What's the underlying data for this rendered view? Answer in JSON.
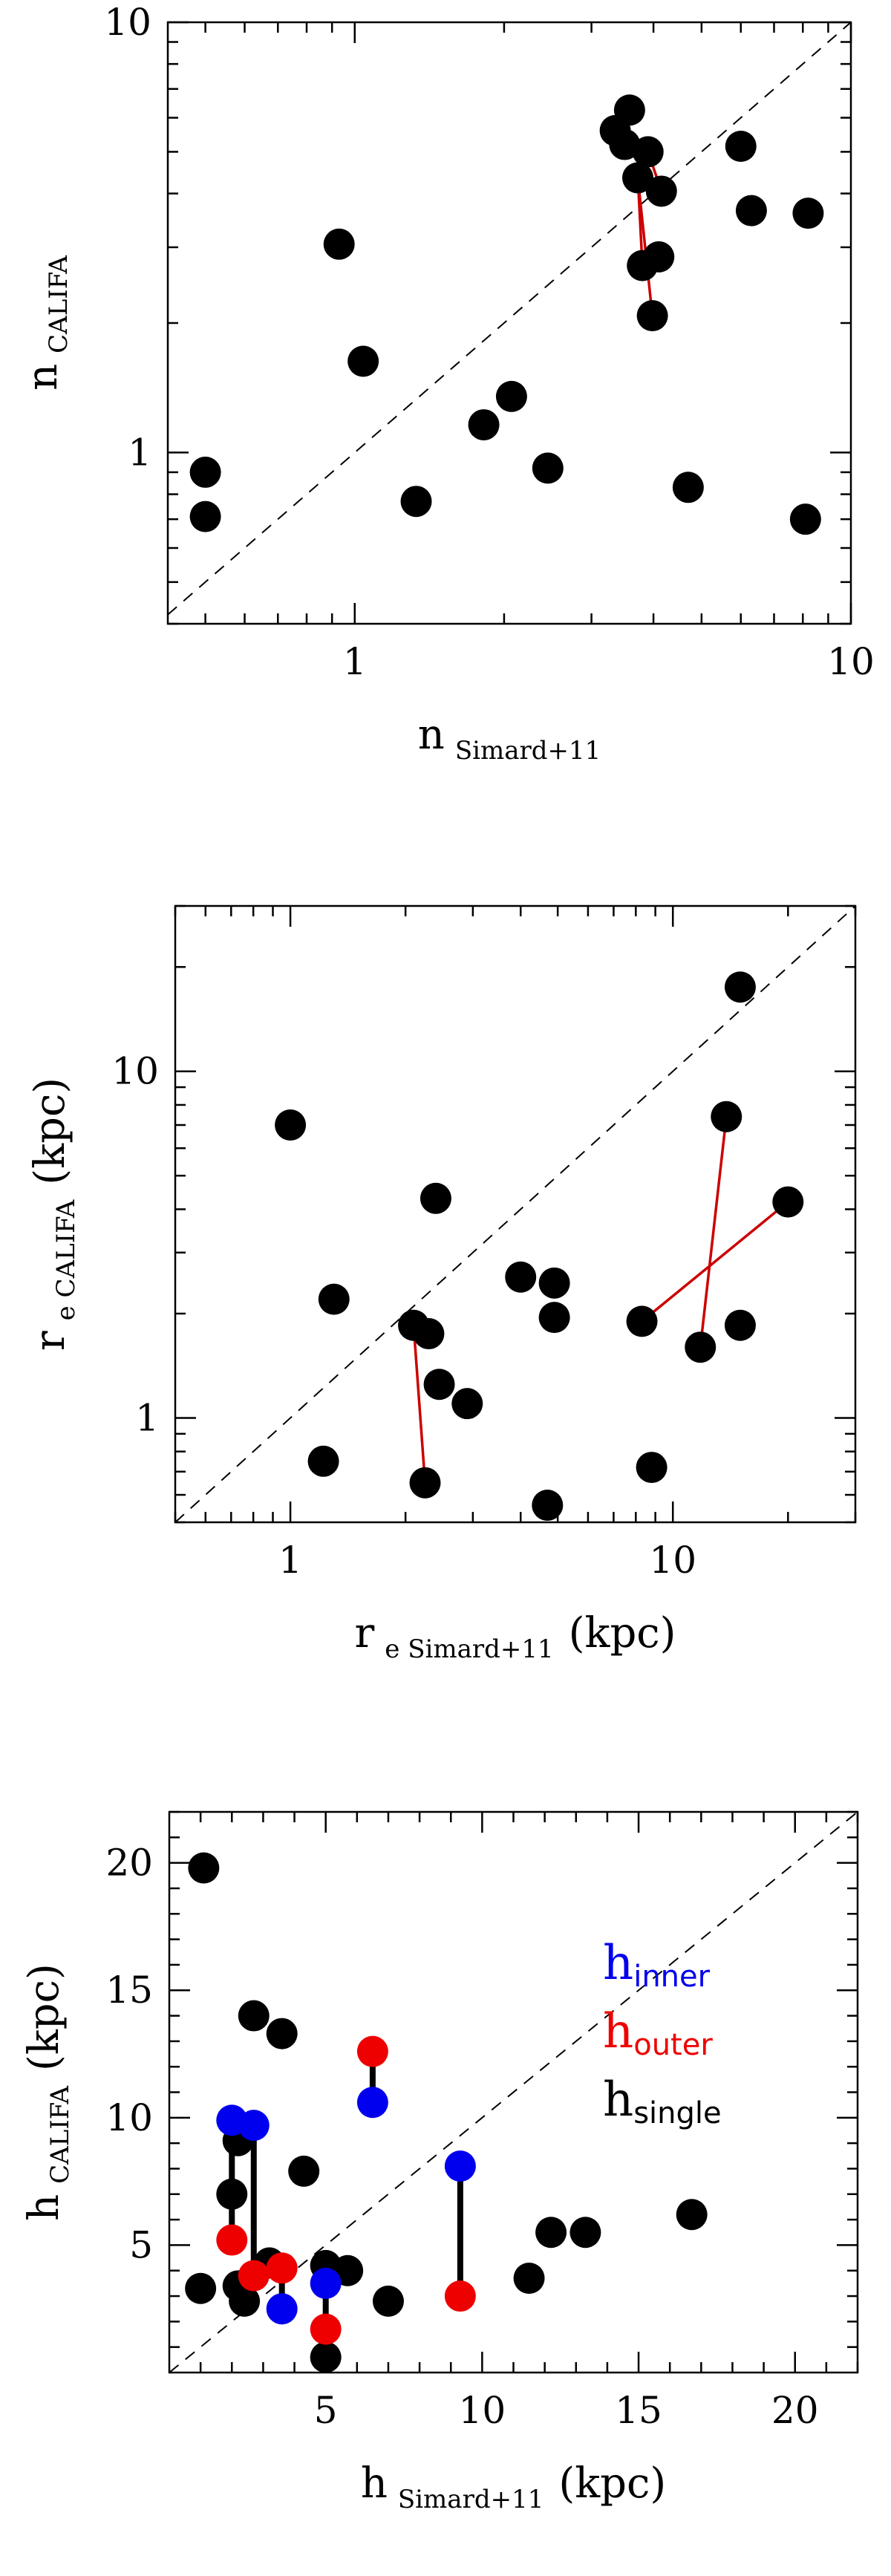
{
  "chart_data": [
    {
      "type": "scatter",
      "scale": "log",
      "xlabel": {
        "main": "n",
        "sub": "Simard+11"
      },
      "ylabel": {
        "main": "n",
        "sub": "CALIFA"
      },
      "xlim": [
        0.42,
        10
      ],
      "ylim": [
        0.4,
        10
      ],
      "xticks": [
        {
          "v": 1,
          "label": "1"
        },
        {
          "v": 10,
          "label": "10"
        }
      ],
      "yticks": [
        {
          "v": 1,
          "label": "1"
        },
        {
          "v": 10,
          "label": "10"
        }
      ],
      "reference_line": "1:1 dashed",
      "colors": {
        "point": "#000000",
        "connector": "#cc0000"
      },
      "points": [
        [
          0.5,
          0.9
        ],
        [
          0.5,
          0.71
        ],
        [
          0.93,
          3.05
        ],
        [
          1.04,
          1.63
        ],
        [
          1.33,
          0.77
        ],
        [
          1.82,
          1.16
        ],
        [
          2.07,
          1.35
        ],
        [
          2.45,
          0.92
        ],
        [
          3.35,
          5.6
        ],
        [
          3.5,
          5.2
        ],
        [
          3.58,
          6.25
        ],
        [
          3.72,
          4.35
        ],
        [
          3.9,
          5.0
        ],
        [
          3.8,
          2.72
        ],
        [
          3.98,
          2.08
        ],
        [
          4.1,
          2.85
        ],
        [
          4.15,
          4.05
        ],
        [
          4.7,
          0.83
        ],
        [
          6.0,
          5.15
        ],
        [
          6.3,
          3.65
        ],
        [
          8.2,
          3.6
        ],
        [
          8.1,
          0.7
        ]
      ],
      "connectors": [
        [
          [
            3.72,
            4.35
          ],
          [
            3.8,
            2.72
          ]
        ],
        [
          [
            3.72,
            4.35
          ],
          [
            3.98,
            2.08
          ]
        ],
        [
          [
            4.15,
            4.05
          ],
          [
            3.9,
            5.0
          ]
        ]
      ]
    },
    {
      "type": "scatter",
      "scale": "log",
      "xlabel": {
        "main": "r",
        "sub": "e Simard+11",
        "unit": "(kpc)"
      },
      "ylabel": {
        "main": "r",
        "sub": "e CALIFA",
        "unit": "(kpc)"
      },
      "xlim": [
        0.5,
        30
      ],
      "ylim": [
        0.5,
        30
      ],
      "xticks": [
        {
          "v": 1,
          "label": "1"
        },
        {
          "v": 10,
          "label": "10"
        }
      ],
      "yticks": [
        {
          "v": 1,
          "label": "1"
        },
        {
          "v": 10,
          "label": "10"
        }
      ],
      "reference_line": "1:1 dashed",
      "colors": {
        "point": "#000000",
        "connector": "#cc0000"
      },
      "points": [
        [
          1.0,
          7.0
        ],
        [
          1.22,
          0.75
        ],
        [
          1.3,
          2.2
        ],
        [
          2.1,
          1.85
        ],
        [
          2.25,
          0.65
        ],
        [
          2.3,
          1.75
        ],
        [
          2.4,
          4.3
        ],
        [
          2.45,
          1.25
        ],
        [
          2.9,
          1.1
        ],
        [
          4.0,
          2.55
        ],
        [
          4.7,
          0.56
        ],
        [
          4.9,
          2.45
        ],
        [
          4.9,
          1.95
        ],
        [
          8.3,
          1.9
        ],
        [
          8.8,
          0.72
        ],
        [
          11.8,
          1.6
        ],
        [
          13.8,
          7.4
        ],
        [
          15.0,
          1.85
        ],
        [
          15.0,
          17.5
        ],
        [
          20.0,
          4.2
        ]
      ],
      "connectors": [
        [
          [
            2.1,
            1.85
          ],
          [
            2.25,
            0.65
          ]
        ],
        [
          [
            11.8,
            1.6
          ],
          [
            13.8,
            7.4
          ]
        ],
        [
          [
            8.3,
            1.9
          ],
          [
            20.0,
            4.2
          ]
        ]
      ]
    },
    {
      "type": "scatter",
      "scale": "linear",
      "xlabel": {
        "main": "h",
        "sub": "Simard+11",
        "unit": "(kpc)"
      },
      "ylabel": {
        "main": "h",
        "sub": "CALIFA",
        "unit": "(kpc)"
      },
      "xlim": [
        0,
        22
      ],
      "ylim": [
        0,
        22
      ],
      "xticks": [
        {
          "v": 5,
          "label": "5"
        },
        {
          "v": 10,
          "label": "10"
        },
        {
          "v": 15,
          "label": "15"
        },
        {
          "v": 20,
          "label": "20"
        }
      ],
      "yticks": [
        {
          "v": 5,
          "label": "5"
        },
        {
          "v": 10,
          "label": "10"
        },
        {
          "v": 15,
          "label": "15"
        },
        {
          "v": 20,
          "label": "20"
        }
      ],
      "reference_line": "1:1 dashed",
      "legend": {
        "placement": "top-right",
        "entries": [
          {
            "main": "h",
            "sub": "inner",
            "color": "#0000ee"
          },
          {
            "main": "h",
            "sub": "outer",
            "color": "#ee0000"
          },
          {
            "main": "h",
            "sub": "single",
            "color": "#000000"
          }
        ]
      },
      "single": [
        [
          1.1,
          19.8
        ],
        [
          1.0,
          3.3
        ],
        [
          2.0,
          7.0
        ],
        [
          2.2,
          9.1
        ],
        [
          2.2,
          3.4
        ],
        [
          2.4,
          2.8
        ],
        [
          2.7,
          14.0
        ],
        [
          3.2,
          4.3
        ],
        [
          3.6,
          13.3
        ],
        [
          4.3,
          7.9
        ],
        [
          5.0,
          4.2
        ],
        [
          5.0,
          0.6
        ],
        [
          5.7,
          4.0
        ],
        [
          7.0,
          2.8
        ],
        [
          11.5,
          3.7
        ],
        [
          12.2,
          5.5
        ],
        [
          13.3,
          5.5
        ],
        [
          16.7,
          6.2
        ]
      ],
      "inner": [
        [
          2.0,
          9.9
        ],
        [
          2.7,
          9.7
        ],
        [
          3.6,
          2.5
        ],
        [
          5.0,
          3.5
        ],
        [
          6.5,
          10.6
        ],
        [
          9.3,
          8.1
        ]
      ],
      "outer": [
        [
          2.0,
          5.2
        ],
        [
          2.7,
          3.8
        ],
        [
          3.6,
          4.1
        ],
        [
          5.0,
          1.7
        ],
        [
          6.5,
          12.6
        ],
        [
          9.3,
          3.0
        ]
      ],
      "connectors": [
        [
          [
            2.0,
            9.9
          ],
          [
            2.0,
            5.2
          ]
        ],
        [
          [
            2.7,
            9.7
          ],
          [
            2.7,
            3.8
          ]
        ],
        [
          [
            3.6,
            2.5
          ],
          [
            3.6,
            4.1
          ]
        ],
        [
          [
            5.0,
            3.5
          ],
          [
            5.0,
            1.7
          ]
        ],
        [
          [
            6.5,
            10.6
          ],
          [
            6.5,
            12.6
          ]
        ],
        [
          [
            9.3,
            8.1
          ],
          [
            9.3,
            3.0
          ]
        ]
      ]
    }
  ]
}
